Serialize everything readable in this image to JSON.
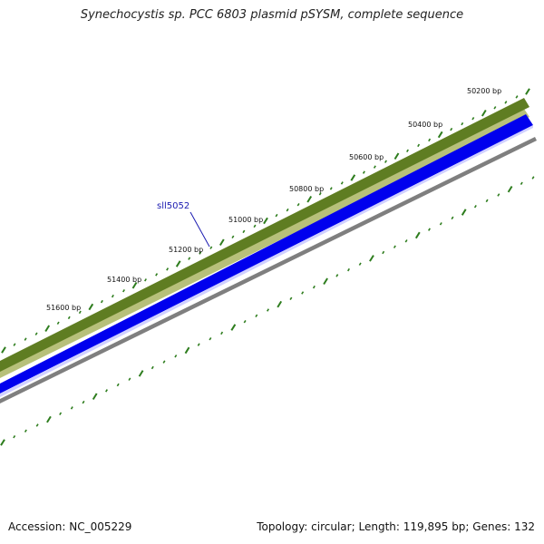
{
  "title": "Synechocystis sp. PCC 6803 plasmid pSYSM, complete sequence",
  "footer": {
    "accession_label": "Accession:",
    "accession": "NC_005229",
    "topology_label": "Topology:",
    "topology": "circular",
    "length_label": "Length:",
    "length": "119,895 bp",
    "genes_label": "Genes:",
    "genes": "132"
  },
  "map": {
    "tick_labels": [
      "50200 bp",
      "50400 bp",
      "50600 bp",
      "50800 bp",
      "51000 bp",
      "51200 bp",
      "51400 bp",
      "51600 bp"
    ],
    "gene_labels": [
      {
        "name": "sll5052",
        "color": "#1a1ab0"
      }
    ],
    "tracks": [
      {
        "name": "forward-genes-track",
        "color": "#6b8a2a"
      },
      {
        "name": "reverse-genes-track",
        "color": "#0000ee"
      },
      {
        "name": "backbone-track",
        "color": "#7f7f7f"
      }
    ],
    "dot_color": "#2e7d1e"
  }
}
